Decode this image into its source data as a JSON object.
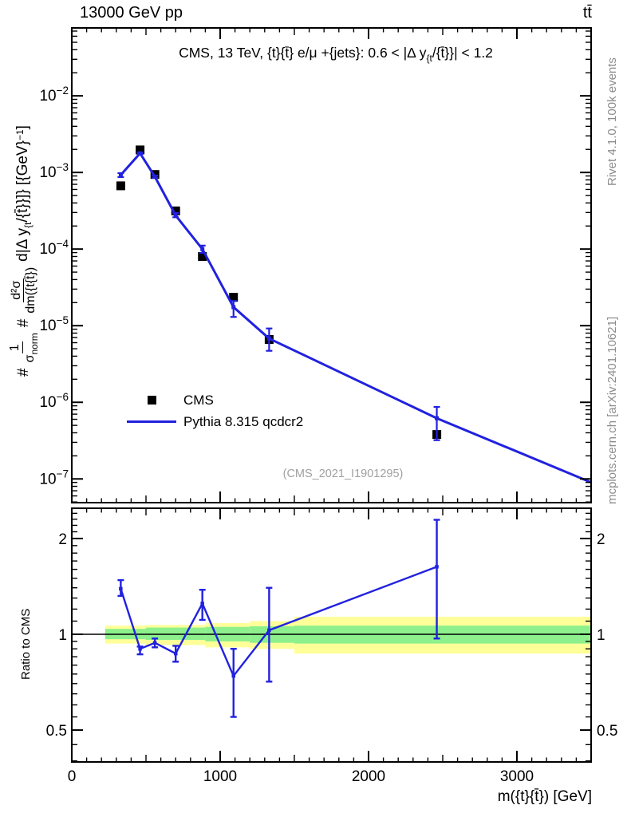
{
  "header": {
    "left": "13000 GeV pp",
    "right": "tt̄"
  },
  "right_margin": {
    "top_note": "Rivet 4.1.0,  100k events",
    "bottom_note": "mcplots.cern.ch [arXiv:2401.10621]"
  },
  "main_panel": {
    "title_pre": "CMS, 13 TeV, {t}{t̄} e/μ +{jets}: 0.6 < |Δ y",
    "title_sub": "{t",
    "title_post": "/{t̄}}| < 1.2",
    "watermark": "(CMS_2021_I1901295)",
    "ylabel": {
      "hash1": "#",
      "frac1_num": "1",
      "frac1_den": "σ",
      "frac1_den_sub": "norm",
      "hash2": "#",
      "frac2_num": "d²σ",
      "frac2_den": "dm({t{t̄})",
      "tail_pre": "d|Δ y",
      "tail_sub": "{t",
      "tail_mid": "/{t̄}}]} [{GeV}",
      "tail_sup": "−1",
      "tail_end": "]"
    },
    "legend": [
      {
        "label": "CMS",
        "marker": "black-square"
      },
      {
        "label": "Pythia 8.315 qcdcr2",
        "marker": "blue-line"
      }
    ]
  },
  "ratio_panel": {
    "ylabel": "Ratio to CMS"
  },
  "x_axis": {
    "title": "m({t}{t̄}) [GeV]"
  },
  "colors": {
    "mc_blue": "#2121df",
    "band_yellow": "#ffff99",
    "band_green": "#8df08c",
    "gray_text": "#8c8c8c",
    "watermark_gray": "#a0a0a0",
    "black": "#000000"
  },
  "chart_data": {
    "type": "line",
    "title": "CMS, 13 TeV, ttbar e/mu +jets: 0.6 < |dy(t/tbar)| < 1.2",
    "xlabel": "m(ttbar) [GeV]",
    "ylabel": "1/sigma_norm d2sigma/dm(ttbar) d|dy(t/tbar)| [GeV^-1]",
    "legend_position": "lower-left",
    "grid": false,
    "xlim": [
      0,
      3500
    ],
    "main_ylim": [
      4.9e-08,
      0.077
    ],
    "ratio_ylim": [
      0.397,
      2.49
    ],
    "x_major_ticks": [
      0,
      1000,
      2000,
      3000
    ],
    "x_minor_step": 100,
    "main_y_decades": [
      -2,
      -3,
      -4,
      -5,
      -6,
      -7
    ],
    "ratio_major_ticks": [
      0.5,
      1,
      2
    ],
    "x_cms": [
      330,
      460,
      560,
      700,
      880,
      1090,
      1330,
      2460
    ],
    "series": [
      {
        "name": "CMS",
        "type": "scatter",
        "marker": "square",
        "color": "#000000",
        "y": [
          0.00067,
          0.00197,
          0.00094,
          0.000315,
          8e-05,
          2.35e-05,
          6.6e-06,
          3.8e-07
        ]
      },
      {
        "name": "Pythia 8.315 qcdcr2",
        "type": "line",
        "color": "#2121df",
        "x": [
          330,
          460,
          560,
          700,
          880,
          1090,
          1330,
          2460,
          3500
        ],
        "y": [
          0.00093,
          0.00178,
          0.00088,
          0.000275,
          0.0001,
          1.75e-05,
          6.8e-06,
          6.2e-07,
          9e-08
        ],
        "y_err_lo": [
          0.00087,
          0.00174,
          0.00085,
          0.00026,
          8.9e-05,
          1.3e-05,
          4.7e-06,
          3.2e-07
        ],
        "y_err_hi": [
          0.00098,
          0.00182,
          0.00091,
          0.000295,
          0.000111,
          2.1e-05,
          9.2e-06,
          8.7e-07
        ]
      }
    ],
    "ratio": {
      "baseline": 1,
      "y": [
        1.39,
        0.9,
        0.94,
        0.87,
        1.25,
        0.74,
        1.03,
        1.63
      ],
      "y_err_lo": [
        1.32,
        0.865,
        0.91,
        0.82,
        1.11,
        0.55,
        0.71,
        0.97
      ],
      "y_err_hi": [
        1.48,
        0.915,
        0.97,
        0.92,
        1.38,
        0.9,
        1.4,
        2.29
      ],
      "bands": [
        {
          "x0": 225,
          "x1": 500,
          "yellow": [
            0.935,
            1.065
          ],
          "green": [
            0.965,
            1.04
          ]
        },
        {
          "x0": 500,
          "x1": 900,
          "yellow": [
            0.925,
            1.07
          ],
          "green": [
            0.96,
            1.05
          ]
        },
        {
          "x0": 900,
          "x1": 1200,
          "yellow": [
            0.91,
            1.085
          ],
          "green": [
            0.95,
            1.055
          ]
        },
        {
          "x0": 1200,
          "x1": 1500,
          "yellow": [
            0.9,
            1.1
          ],
          "green": [
            0.94,
            1.06
          ]
        },
        {
          "x0": 1500,
          "x1": 3500,
          "yellow": [
            0.87,
            1.135
          ],
          "green": [
            0.935,
            1.065
          ]
        }
      ]
    }
  }
}
